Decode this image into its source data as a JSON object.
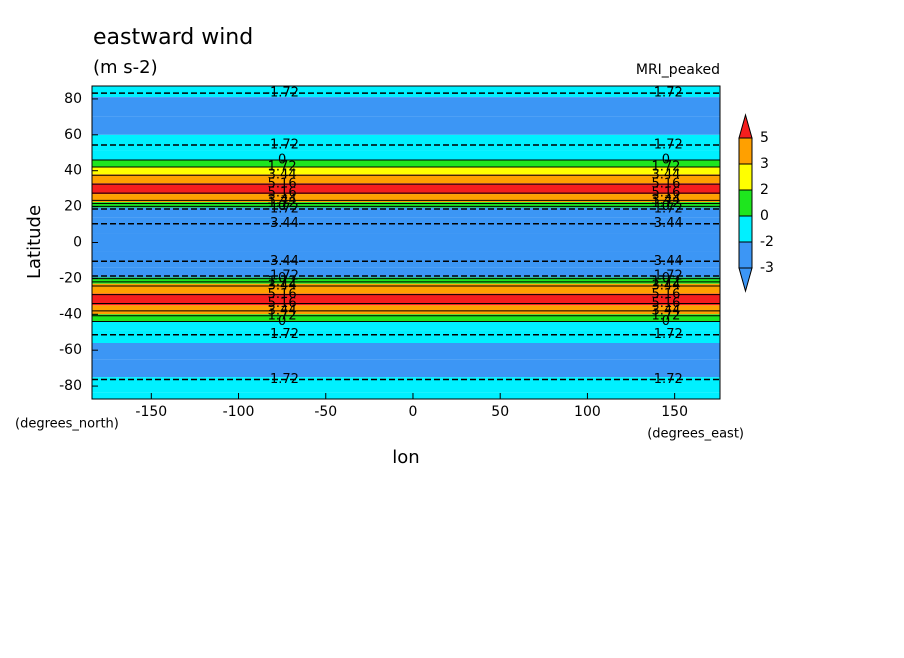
{
  "chart_data": {
    "type": "contour",
    "title": "eastward wind",
    "subtitle": "(m s-2)",
    "annotation": "MRI_peaked",
    "ylabel": "Latitude",
    "xlabel": "lon",
    "yunits": "(degrees_north)",
    "xunits": "(degrees_east)",
    "xlim": [
      -184,
      176
    ],
    "ylim": [
      -87.2,
      87.2
    ],
    "xticks": [
      -150,
      -100,
      -50,
      0,
      50,
      100,
      150
    ],
    "yticks": [
      -80,
      -60,
      -40,
      -20,
      0,
      20,
      40,
      60,
      80
    ],
    "lat": [
      87,
      75,
      65,
      55,
      48,
      44,
      40,
      36,
      30,
      24,
      21,
      18,
      10,
      0,
      -10,
      -18,
      -21,
      -25,
      -32,
      -38,
      -42,
      -46,
      -52,
      -60,
      -70,
      -80,
      -87
    ],
    "values": [
      -1.5,
      -2.2,
      -2.3,
      -1.8,
      -1,
      1,
      2.5,
      4,
      6,
      4,
      1,
      -2.5,
      -3.5,
      -3.6,
      -3.5,
      -2.5,
      1,
      4,
      6,
      3.5,
      1,
      -1,
      -1.8,
      -2.4,
      -2.1,
      -1.5,
      -1.5
    ],
    "colorbar_levels": [
      -3,
      -2,
      0,
      2,
      3,
      5
    ],
    "colors": [
      "#3c96f5",
      "#3c96f5",
      "#00f0ff",
      "#1ee61e",
      "#ffff00",
      "#ffa000",
      "#f51e1e"
    ],
    "contour_levels": [
      -3.44,
      -1.72,
      0,
      1.72,
      3.44,
      5.16
    ]
  }
}
